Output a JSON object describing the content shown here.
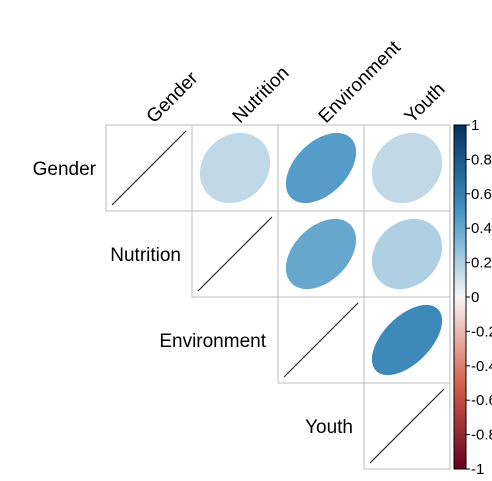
{
  "chart_data": {
    "type": "heatmap",
    "subtype": "correlation-ellipse",
    "layout": "upper-triangle",
    "title": "",
    "variables": [
      "Gender",
      "Nutrition",
      "Environment",
      "Youth"
    ],
    "correlations": [
      {
        "row": "Gender",
        "col": "Nutrition",
        "value": 0.15
      },
      {
        "row": "Gender",
        "col": "Environment",
        "value": 0.45
      },
      {
        "row": "Gender",
        "col": "Youth",
        "value": 0.15
      },
      {
        "row": "Nutrition",
        "col": "Environment",
        "value": 0.4
      },
      {
        "row": "Nutrition",
        "col": "Youth",
        "value": 0.2
      },
      {
        "row": "Environment",
        "col": "Youth",
        "value": 0.55
      }
    ],
    "diagonal": "line",
    "colorbar": {
      "range": [
        -1,
        1
      ],
      "ticks": [
        "1",
        "0.8",
        "0.6",
        "0.4",
        "0.2",
        "0",
        "-0.2",
        "-0.4",
        "-0.6",
        "-0.8",
        "-1"
      ],
      "placement": "right",
      "colors": {
        "neg_strong": "#67001f",
        "neg_mid": "#d6604d",
        "neutral": "#f7f7f7",
        "pos_mid": "#4393c3",
        "pos_strong": "#053061"
      }
    },
    "grid": true
  }
}
